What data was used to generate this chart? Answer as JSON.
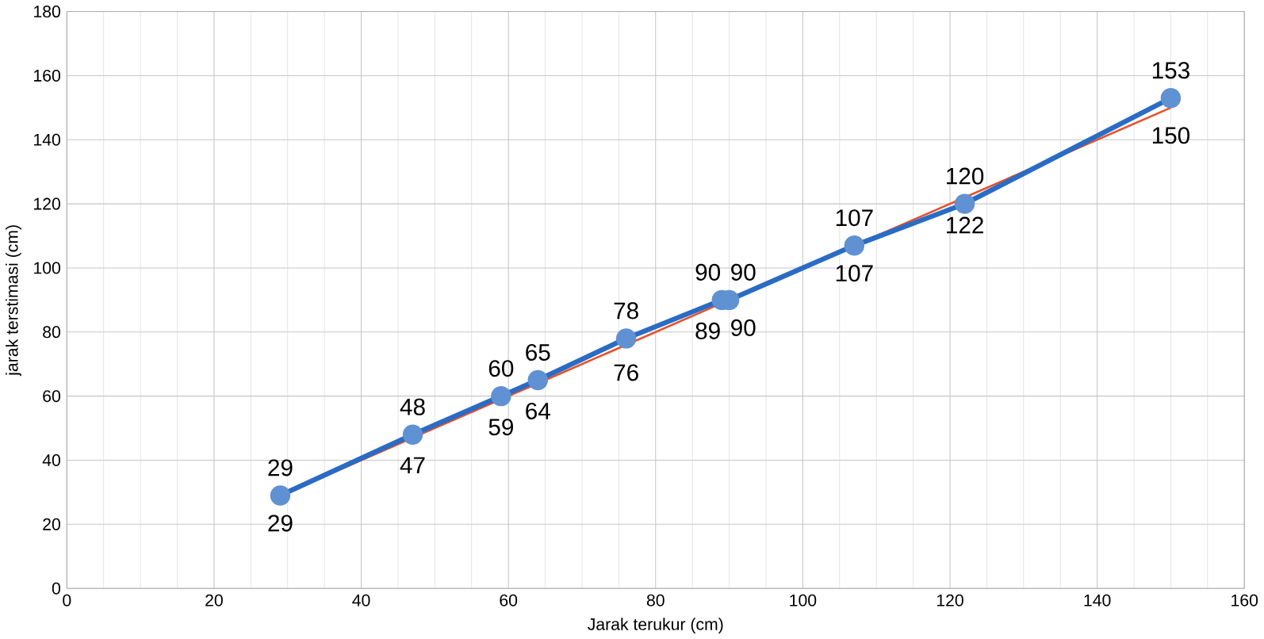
{
  "chart_data": {
    "type": "line",
    "xlabel": "Jarak terukur (cm)",
    "ylabel": "jarak terstimasi (cm)",
    "x": [
      29,
      47,
      59,
      64,
      76,
      89,
      90,
      107,
      122,
      150
    ],
    "series": [
      {
        "color": "#e8502a",
        "values": [
          29,
          47,
          59,
          64,
          76,
          89,
          90,
          107,
          122,
          150
        ],
        "marker": "none"
      },
      {
        "color": "#2a6cc4",
        "values": [
          29,
          48,
          60,
          65,
          78,
          90,
          90,
          107,
          120,
          153
        ],
        "marker": "circle"
      }
    ],
    "xlim": [
      0,
      160
    ],
    "xticks": [
      0,
      20,
      40,
      60,
      80,
      100,
      120,
      140,
      160
    ],
    "ylim": [
      0,
      180
    ],
    "yticks": [
      0,
      20,
      40,
      60,
      80,
      100,
      120,
      140,
      160,
      180
    ],
    "grid": true,
    "data_labels": true
  }
}
